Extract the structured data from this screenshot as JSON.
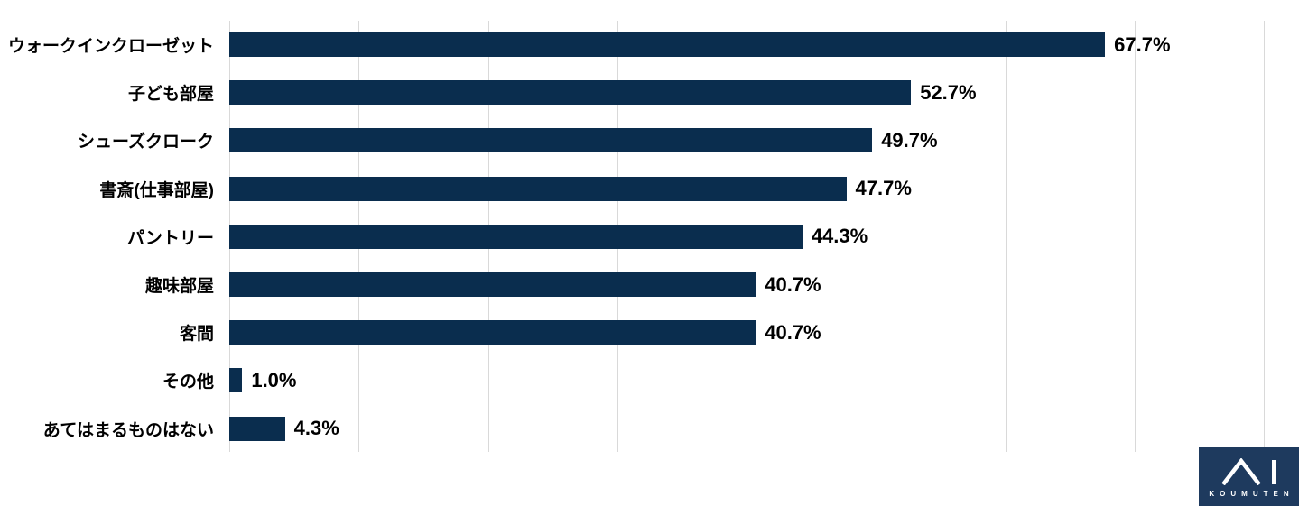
{
  "chart_data": {
    "type": "bar",
    "orientation": "horizontal",
    "title": "",
    "xlabel": "",
    "ylabel": "",
    "categories": [
      "ウォークインクローゼット",
      "子ども部屋",
      "シューズクローク",
      "書斎(仕事部屋)",
      "パントリー",
      "趣味部屋",
      "客間",
      "その他",
      "あてはまるものはない"
    ],
    "values": [
      67.7,
      52.7,
      49.7,
      47.7,
      44.3,
      40.7,
      40.7,
      1.0,
      4.3
    ],
    "value_labels": [
      "67.7%",
      "52.7%",
      "49.7%",
      "47.7%",
      "44.3%",
      "40.7%",
      "40.7%",
      "1.0%",
      "4.3%"
    ],
    "xlim": [
      0,
      80
    ],
    "gridline_step": 10,
    "grid": true,
    "legend": false,
    "bar_color": "#0a2d4e",
    "gridline_color": "#d9d9d9",
    "label_color": "#000000"
  },
  "logo": {
    "company": "KOUMUTEN",
    "mark": "AI",
    "background_color": "#1e3a5e",
    "mark_color": "#ffffff"
  }
}
